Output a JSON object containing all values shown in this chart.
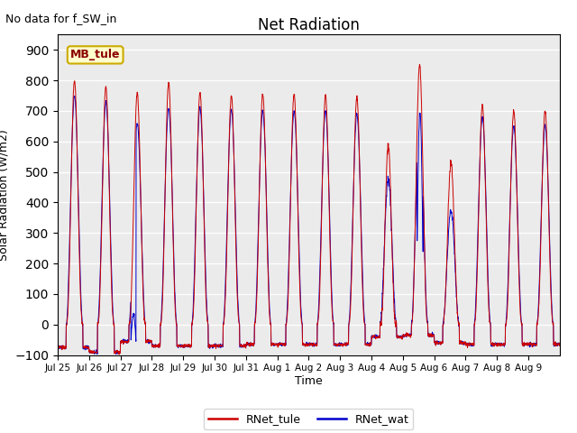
{
  "title": "Net Radiation",
  "ylabel": "Solar Radiation (W/m2)",
  "xlabel": "Time",
  "annotation": "No data for f_SW_in",
  "legend_label1": "RNet_tule",
  "legend_label2": "RNet_wat",
  "color1": "#CC0000",
  "color2": "#0000CC",
  "ylim": [
    -100,
    950
  ],
  "yticks": [
    -100,
    0,
    100,
    200,
    300,
    400,
    500,
    600,
    700,
    800,
    900
  ],
  "bg_color": "#EBEBEB",
  "watermark_text": "MB_tule",
  "watermark_bg": "#FFFFCC",
  "watermark_border": "#CCAA00",
  "n_days": 16,
  "day_labels": [
    "Jul 25",
    "Jul 26",
    "Jul 27",
    "Jul 28",
    "Jul 29",
    "Jul 30",
    "Jul 31",
    "Aug 1",
    "Aug 2",
    "Aug 3",
    "Aug 4",
    "Aug 5",
    "Aug 6",
    "Aug 7",
    "Aug 8",
    "Aug 9"
  ],
  "peaks_tule": [
    800,
    780,
    760,
    790,
    760,
    750,
    755,
    755,
    750,
    745,
    590,
    850,
    530,
    720,
    700,
    700
  ],
  "peaks_wat": [
    750,
    730,
    660,
    710,
    710,
    705,
    700,
    700,
    700,
    690,
    475,
    700,
    375,
    680,
    650,
    650
  ],
  "night_tule": [
    -75,
    -90,
    -55,
    -70,
    -70,
    -70,
    -65,
    -65,
    -65,
    -65,
    -40,
    -35,
    -60,
    -65,
    -65,
    -65
  ],
  "night_wat": [
    -75,
    -90,
    -55,
    -70,
    -70,
    -70,
    -65,
    -65,
    -65,
    -65,
    -40,
    -35,
    -60,
    -65,
    -65,
    -65
  ]
}
